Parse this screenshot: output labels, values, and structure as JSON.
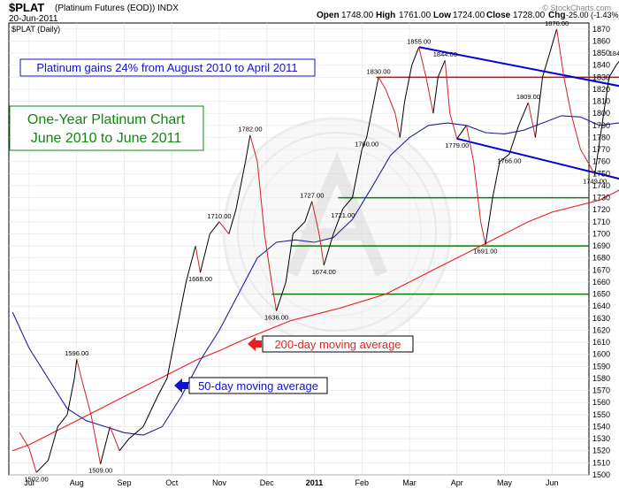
{
  "header": {
    "symbol": "$PLAT",
    "name": "(Platinum Futures (EOD))",
    "exchange": "INDX",
    "date": "20-Jun-2011",
    "open_label": "Open",
    "open": "1748.00",
    "high_label": "High",
    "high": "1761.00",
    "low_label": "Low",
    "low": "1724.00",
    "close_label": "Close",
    "close": "1728.00",
    "chg_label": "Chg",
    "chg": "-25.00 (-1.43%)",
    "legend": "$PLAT (Daily)",
    "watermark": "© StockCharts.com"
  },
  "annotations": {
    "gains_box": "Platinum gains 24% from August 2010 to April 2011",
    "title_line1": "One-Year Platinum Chart",
    "title_line2": "June 2010 to June 2011",
    "ma200": "200-day moving average",
    "ma50": "50-day moving average"
  },
  "colors": {
    "price_up": "#000000",
    "price_down": "#d0202a",
    "ma50": "#1f1fa0",
    "ma200": "#e82020",
    "channel": "#0000e0",
    "resistance": "#e00000",
    "support": "#0a7a0a",
    "title_green": "#118811",
    "box_blue": "#1212cc"
  },
  "chart_data": {
    "type": "line",
    "ylim": [
      1500,
      1875
    ],
    "x_labels": [
      "Jul",
      "Aug",
      "Sep",
      "Oct",
      "Nov",
      "Dec",
      "2011",
      "Feb",
      "Mar",
      "Apr",
      "May",
      "Jun"
    ],
    "y_ticks": [
      1500,
      1510,
      1520,
      1530,
      1540,
      1550,
      1560,
      1570,
      1580,
      1590,
      1600,
      1610,
      1620,
      1630,
      1640,
      1650,
      1660,
      1670,
      1680,
      1690,
      1700,
      1710,
      1720,
      1730,
      1740,
      1750,
      1760,
      1770,
      1780,
      1790,
      1800,
      1810,
      1820,
      1830,
      1840,
      1850,
      1860,
      1870
    ],
    "price": [
      [
        -0.2,
        1535
      ],
      [
        0.0,
        1522
      ],
      [
        0.15,
        1502
      ],
      [
        0.4,
        1512
      ],
      [
        0.6,
        1540
      ],
      [
        0.8,
        1550
      ],
      [
        0.95,
        1580
      ],
      [
        1.0,
        1596
      ],
      [
        1.1,
        1580
      ],
      [
        1.3,
        1550
      ],
      [
        1.5,
        1509
      ],
      [
        1.7,
        1540
      ],
      [
        1.9,
        1520
      ],
      [
        2.1,
        1530
      ],
      [
        2.4,
        1540
      ],
      [
        2.7,
        1565
      ],
      [
        2.9,
        1580
      ],
      [
        3.1,
        1620
      ],
      [
        3.3,
        1660
      ],
      [
        3.5,
        1690
      ],
      [
        3.6,
        1668
      ],
      [
        3.8,
        1700
      ],
      [
        4.0,
        1710
      ],
      [
        4.2,
        1700
      ],
      [
        4.35,
        1720
      ],
      [
        4.55,
        1760
      ],
      [
        4.65,
        1782
      ],
      [
        4.8,
        1760
      ],
      [
        4.95,
        1700
      ],
      [
        5.1,
        1660
      ],
      [
        5.2,
        1636
      ],
      [
        5.4,
        1660
      ],
      [
        5.55,
        1700
      ],
      [
        5.8,
        1710
      ],
      [
        5.95,
        1727
      ],
      [
        6.1,
        1700
      ],
      [
        6.2,
        1674
      ],
      [
        6.4,
        1700
      ],
      [
        6.6,
        1721
      ],
      [
        6.8,
        1730
      ],
      [
        7.0,
        1770
      ],
      [
        7.1,
        1780
      ],
      [
        7.2,
        1800
      ],
      [
        7.35,
        1830
      ],
      [
        7.5,
        1820
      ],
      [
        7.7,
        1800
      ],
      [
        7.8,
        1780
      ],
      [
        7.9,
        1810
      ],
      [
        8.05,
        1840
      ],
      [
        8.2,
        1855
      ],
      [
        8.35,
        1830
      ],
      [
        8.5,
        1800
      ],
      [
        8.6,
        1830
      ],
      [
        8.75,
        1844
      ],
      [
        8.85,
        1800
      ],
      [
        9.0,
        1779
      ],
      [
        9.2,
        1790
      ],
      [
        9.35,
        1760
      ],
      [
        9.5,
        1710
      ],
      [
        9.6,
        1691
      ],
      [
        9.75,
        1730
      ],
      [
        9.9,
        1760
      ],
      [
        10.1,
        1766
      ],
      [
        10.3,
        1790
      ],
      [
        10.5,
        1809
      ],
      [
        10.65,
        1780
      ],
      [
        10.8,
        1830
      ],
      [
        10.95,
        1850
      ],
      [
        11.1,
        1870
      ],
      [
        11.25,
        1830
      ],
      [
        11.4,
        1800
      ],
      [
        11.6,
        1770
      ],
      [
        11.75,
        1760
      ],
      [
        11.9,
        1749
      ],
      [
        12.05,
        1790
      ],
      [
        12.2,
        1830
      ],
      [
        12.35,
        1840
      ],
      [
        12.45,
        1845
      ],
      [
        12.55,
        1830
      ],
      [
        12.7,
        1790
      ],
      [
        12.8,
        1750
      ],
      [
        12.87,
        1728
      ]
    ],
    "ma50": [
      [
        -0.35,
        1635
      ],
      [
        0.0,
        1605
      ],
      [
        0.4,
        1580
      ],
      [
        0.8,
        1555
      ],
      [
        1.2,
        1545
      ],
      [
        1.6,
        1540
      ],
      [
        2.0,
        1535
      ],
      [
        2.4,
        1533
      ],
      [
        2.8,
        1540
      ],
      [
        3.2,
        1565
      ],
      [
        3.6,
        1595
      ],
      [
        4.0,
        1620
      ],
      [
        4.4,
        1650
      ],
      [
        4.8,
        1680
      ],
      [
        5.2,
        1693
      ],
      [
        5.6,
        1695
      ],
      [
        6.0,
        1693
      ],
      [
        6.4,
        1697
      ],
      [
        6.8,
        1712
      ],
      [
        7.2,
        1738
      ],
      [
        7.6,
        1765
      ],
      [
        8.0,
        1780
      ],
      [
        8.4,
        1790
      ],
      [
        8.8,
        1792
      ],
      [
        9.2,
        1790
      ],
      [
        9.6,
        1784
      ],
      [
        10.0,
        1783
      ],
      [
        10.4,
        1786
      ],
      [
        10.8,
        1792
      ],
      [
        11.2,
        1798
      ],
      [
        11.6,
        1797
      ],
      [
        12.0,
        1790
      ],
      [
        12.4,
        1792
      ],
      [
        12.7,
        1797
      ],
      [
        12.87,
        1795
      ]
    ],
    "ma200": [
      [
        -0.35,
        1520
      ],
      [
        0.0,
        1525
      ],
      [
        0.5,
        1535
      ],
      [
        1.0,
        1545
      ],
      [
        1.5,
        1555
      ],
      [
        2.0,
        1565
      ],
      [
        2.5,
        1575
      ],
      [
        3.0,
        1585
      ],
      [
        3.5,
        1595
      ],
      [
        4.0,
        1603
      ],
      [
        4.5,
        1612
      ],
      [
        5.0,
        1620
      ],
      [
        5.5,
        1628
      ],
      [
        6.0,
        1633
      ],
      [
        6.5,
        1638
      ],
      [
        7.0,
        1644
      ],
      [
        7.5,
        1650
      ],
      [
        8.0,
        1660
      ],
      [
        8.5,
        1670
      ],
      [
        9.0,
        1680
      ],
      [
        9.5,
        1690
      ],
      [
        10.0,
        1700
      ],
      [
        10.5,
        1710
      ],
      [
        11.0,
        1718
      ],
      [
        11.5,
        1723
      ],
      [
        12.0,
        1728
      ],
      [
        12.5,
        1738
      ],
      [
        12.87,
        1743
      ]
    ],
    "price_labels": [
      {
        "x": 0.15,
        "y": 1502,
        "text": "1502.00",
        "pos": "below"
      },
      {
        "x": 1.0,
        "y": 1596,
        "text": "1596.00",
        "pos": "above"
      },
      {
        "x": 1.5,
        "y": 1509,
        "text": "1509.00",
        "pos": "below"
      },
      {
        "x": 3.6,
        "y": 1668,
        "text": "1668.00",
        "pos": "below"
      },
      {
        "x": 4.0,
        "y": 1710,
        "text": "1710.00",
        "pos": "above"
      },
      {
        "x": 4.65,
        "y": 1782,
        "text": "1782.00",
        "pos": "above"
      },
      {
        "x": 5.2,
        "y": 1636,
        "text": "1636.00",
        "pos": "below"
      },
      {
        "x": 5.95,
        "y": 1727,
        "text": "1727.00",
        "pos": "above"
      },
      {
        "x": 6.2,
        "y": 1674,
        "text": "1674.00",
        "pos": "below"
      },
      {
        "x": 6.6,
        "y": 1721,
        "text": "1721.00",
        "pos": "below"
      },
      {
        "x": 7.1,
        "y": 1780,
        "text": "1780.00",
        "pos": "below"
      },
      {
        "x": 7.35,
        "y": 1830,
        "text": "1830.00",
        "pos": "above"
      },
      {
        "x": 8.2,
        "y": 1855,
        "text": "1855.00",
        "pos": "above"
      },
      {
        "x": 8.75,
        "y": 1844,
        "text": "1844.00",
        "pos": "above"
      },
      {
        "x": 9.0,
        "y": 1779,
        "text": "1779.00",
        "pos": "below"
      },
      {
        "x": 9.6,
        "y": 1691,
        "text": "1691.00",
        "pos": "below"
      },
      {
        "x": 10.1,
        "y": 1766,
        "text": "1766.00",
        "pos": "below"
      },
      {
        "x": 10.5,
        "y": 1809,
        "text": "1809.00",
        "pos": "above"
      },
      {
        "x": 11.1,
        "y": 1870,
        "text": "1870.00",
        "pos": "above"
      },
      {
        "x": 11.9,
        "y": 1749,
        "text": "1749.00",
        "pos": "below"
      },
      {
        "x": 12.45,
        "y": 1845,
        "text": "1845.12",
        "pos": "above"
      }
    ],
    "resistance_line": {
      "y": 1830,
      "x_from": 7.3,
      "x_to": 12.9
    },
    "channel_upper": [
      [
        8.2,
        1855
      ],
      [
        12.9,
        1819
      ]
    ],
    "channel_lower": [
      [
        9.0,
        1779
      ],
      [
        12.9,
        1741
      ]
    ],
    "support_lines": [
      {
        "y": 1730,
        "x_from": 6.5
      },
      {
        "y": 1690,
        "x_from": 5.5
      },
      {
        "y": 1650,
        "x_from": 5.1
      }
    ]
  }
}
